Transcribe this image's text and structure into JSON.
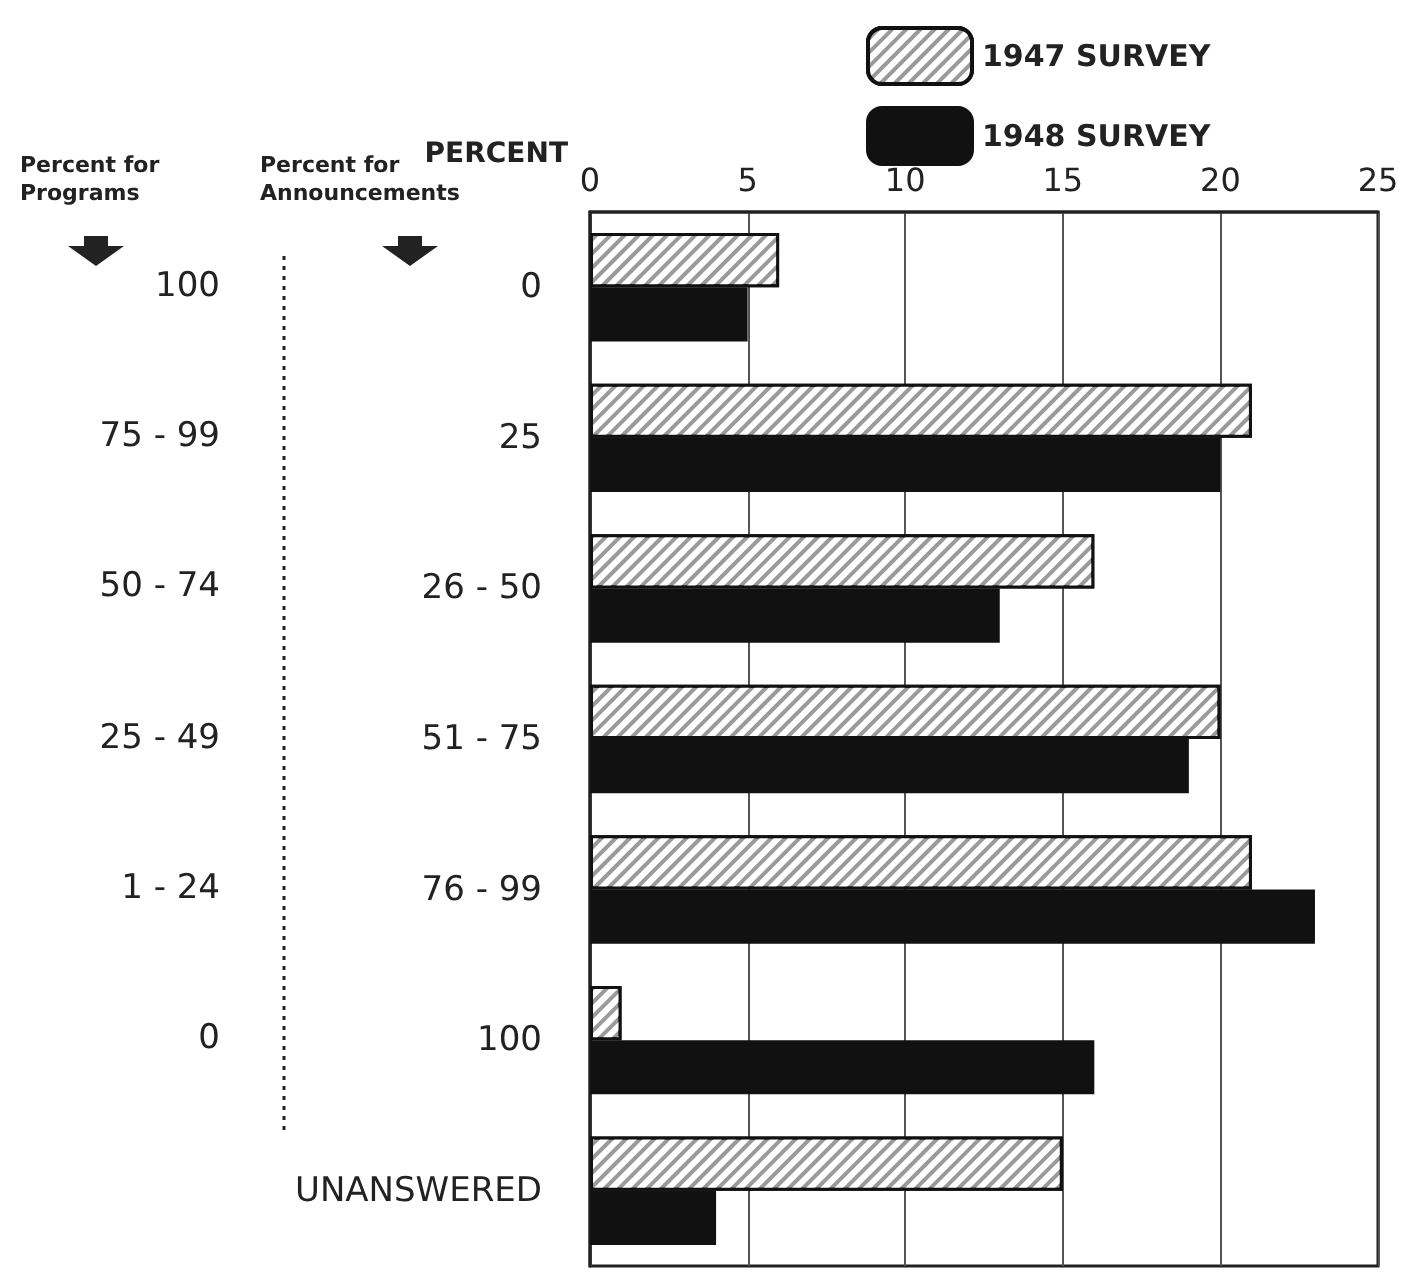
{
  "chart_data": {
    "type": "bar",
    "orientation": "horizontal",
    "xlabel": "PERCENT",
    "categories": [
      "0",
      "25",
      "26 - 50",
      "51 - 75",
      "76 - 99",
      "100",
      "UNANSWERED"
    ],
    "annotations": [
      "Percent for Programs",
      "Percent for Announcements",
      "100",
      "75 - 99",
      "50 - 74",
      "25 - 49",
      "1 - 24",
      "0"
    ],
    "series": [
      {
        "name": "1947 SURVEY",
        "color": "#9a9a9a",
        "values": [
          6,
          21,
          16,
          20,
          21,
          1,
          15
        ]
      },
      {
        "name": "1948 SURVEY",
        "color": "#111111",
        "values": [
          5,
          20,
          13,
          19,
          23,
          16,
          4
        ]
      }
    ],
    "xlim": [
      0,
      25
    ],
    "xticks": [
      0,
      5,
      10,
      15,
      20,
      25
    ],
    "grid": "x",
    "legend": "top right"
  }
}
